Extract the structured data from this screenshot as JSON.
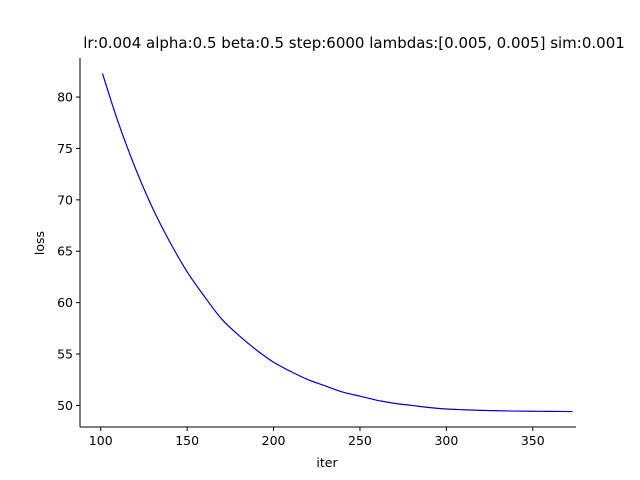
{
  "chart_data": {
    "type": "line",
    "title": "lr:0.004 alpha:0.5 beta:0.5 step:6000 lambdas:[0.005, 0.005] sim:0.001",
    "xlabel": "iter",
    "ylabel": "loss",
    "xlim": [
      88,
      375
    ],
    "ylim": [
      47.9,
      83.8
    ],
    "xticks": [
      100,
      150,
      200,
      250,
      300,
      350
    ],
    "yticks": [
      50,
      55,
      60,
      65,
      70,
      75,
      80
    ],
    "grid": false,
    "spines": "left-bottom",
    "series": [
      {
        "color": "#0000cc",
        "x": [
          101,
          110,
          120,
          130,
          140,
          150,
          160,
          170,
          180,
          190,
          200,
          210,
          220,
          230,
          240,
          250,
          260,
          270,
          280,
          290,
          300,
          310,
          320,
          330,
          340,
          350,
          360,
          373
        ],
        "y": [
          82.3,
          77.6,
          73.1,
          69.2,
          65.9,
          63.0,
          60.6,
          58.4,
          56.8,
          55.4,
          54.2,
          53.3,
          52.5,
          51.9,
          51.3,
          50.9,
          50.5,
          50.2,
          50.0,
          49.8,
          49.65,
          49.58,
          49.52,
          49.48,
          49.45,
          49.43,
          49.42,
          49.4
        ]
      }
    ]
  }
}
